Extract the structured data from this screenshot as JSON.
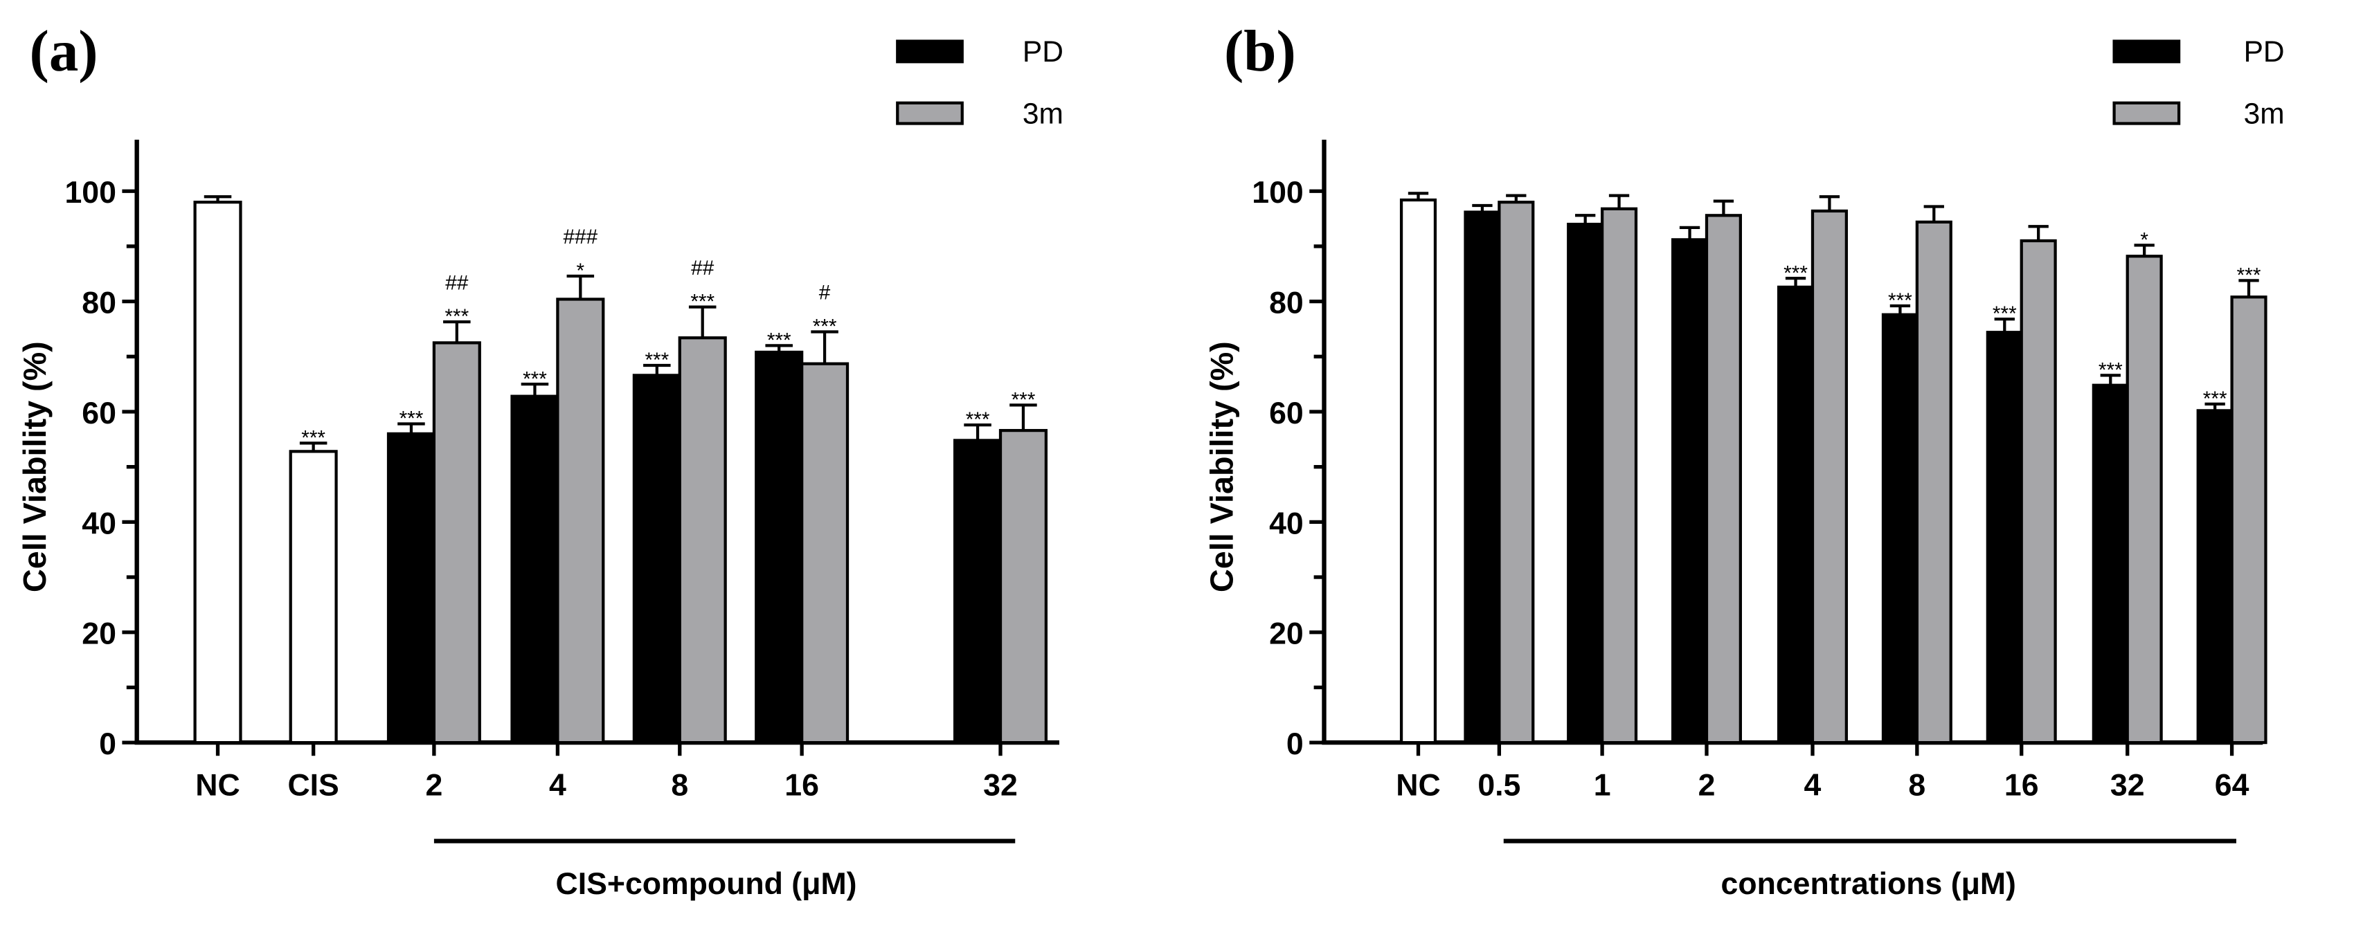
{
  "colors": {
    "PD": "#000000",
    "3m": "#a6a6a9",
    "control": "#ffffff"
  },
  "chart_data": [
    {
      "type": "bar",
      "panel_label": "(a)",
      "ylabel": "Cell Viability (%)",
      "xlabel": "CIS+compound (μM)",
      "ylim": [
        0,
        110
      ],
      "yticks": [
        "0",
        "20",
        "40",
        "60",
        "80",
        "100"
      ],
      "legend": [
        "PD",
        "3m"
      ],
      "legend_position": "top-right",
      "controls": [
        {
          "label": "NC",
          "value": 98,
          "error": 1,
          "ann": []
        },
        {
          "label": "CIS",
          "value": 52.8,
          "error": 1.5,
          "ann": [
            "***"
          ]
        }
      ],
      "categories": [
        "2",
        "4",
        "8",
        "16",
        "32"
      ],
      "series": [
        {
          "name": "PD",
          "values": [
            56,
            62.8,
            66.6,
            70.8,
            54.8
          ],
          "errors": [
            1.8,
            2.2,
            1.8,
            1.2,
            2.8
          ],
          "ann": [
            [
              "***"
            ],
            [
              "***"
            ],
            [
              "***"
            ],
            [
              "***"
            ],
            [
              "***"
            ]
          ]
        },
        {
          "name": "3m",
          "values": [
            72.5,
            80.4,
            73.4,
            68.7,
            56.6
          ],
          "errors": [
            3.8,
            4.2,
            5.6,
            5.8,
            4.6
          ],
          "ann": [
            [
              "***",
              "##"
            ],
            [
              "*",
              "###"
            ],
            [
              "***",
              "##"
            ],
            [
              "***",
              "#"
            ],
            [
              "***"
            ]
          ]
        }
      ]
    },
    {
      "type": "bar",
      "panel_label": "(b)",
      "ylabel": "Cell Viability (%)",
      "xlabel": "concentrations (μM)",
      "ylim": [
        0,
        110
      ],
      "yticks": [
        "0",
        "20",
        "40",
        "60",
        "80",
        "100"
      ],
      "legend": [
        "PD",
        "3m"
      ],
      "legend_position": "top-right",
      "controls": [
        {
          "label": "NC",
          "value": 98.4,
          "error": 1.2,
          "ann": []
        }
      ],
      "categories": [
        "0.5",
        "1",
        "2",
        "4",
        "8",
        "16",
        "32",
        "64"
      ],
      "series": [
        {
          "name": "PD",
          "values": [
            96.2,
            94,
            91.2,
            82.6,
            77.6,
            74.4,
            64.8,
            60.2
          ],
          "errors": [
            1.2,
            1.6,
            2.2,
            1.6,
            1.6,
            2.4,
            1.8,
            1.2
          ],
          "ann": [
            [],
            [],
            [],
            [
              "***"
            ],
            [
              "***"
            ],
            [
              "***"
            ],
            [
              "***"
            ],
            [
              "***"
            ]
          ]
        },
        {
          "name": "3m",
          "values": [
            98,
            96.8,
            95.6,
            96.4,
            94.4,
            91,
            88.2,
            80.8
          ],
          "errors": [
            1.2,
            2.4,
            2.6,
            2.6,
            2.8,
            2.6,
            2,
            3
          ],
          "ann": [
            [],
            [],
            [],
            [],
            [],
            [],
            [
              "*"
            ],
            [
              "***"
            ]
          ]
        }
      ]
    }
  ]
}
